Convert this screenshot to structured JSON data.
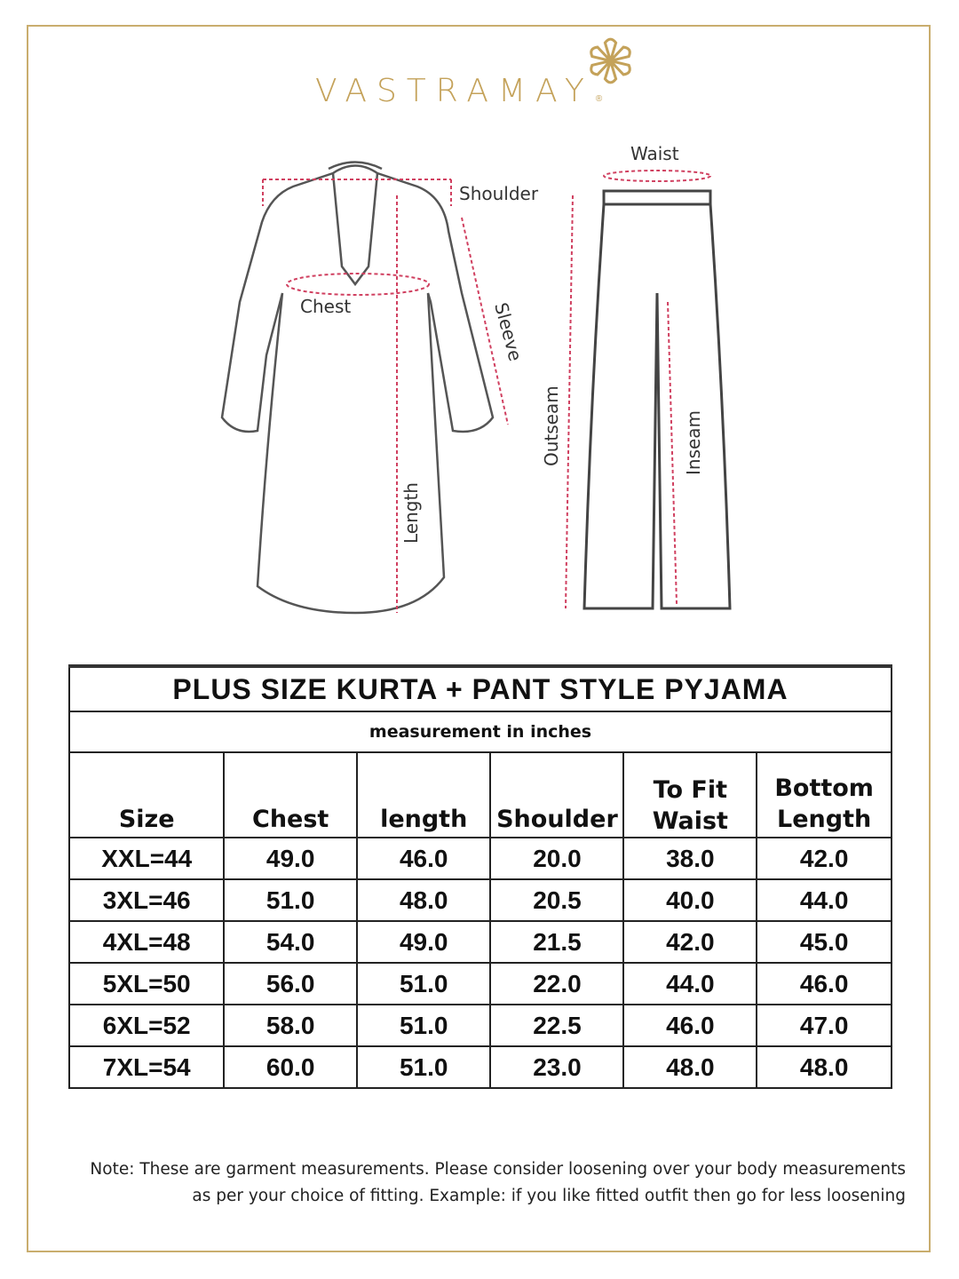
{
  "brand": {
    "name": "VASTRAMAY",
    "registered": "®",
    "color": "#c4a25a"
  },
  "diagram": {
    "kurta_labels": {
      "shoulder": "Shoulder",
      "chest": "Chest",
      "sleeve": "Sleeve",
      "length": "Length"
    },
    "pyjama_labels": {
      "waist": "Waist",
      "outseam": "Outseam",
      "inseam": "Inseam"
    }
  },
  "table": {
    "title": "PLUS SIZE KURTA + PANT STYLE PYJAMA",
    "subtitle": "measurement in inches",
    "headers": [
      "Size",
      "Chest",
      "length",
      "Shoulder",
      "To Fit Waist",
      "Bottom Length"
    ],
    "rows": [
      [
        "XXL=44",
        "49.0",
        "46.0",
        "20.0",
        "38.0",
        "42.0"
      ],
      [
        "3XL=46",
        "51.0",
        "48.0",
        "20.5",
        "40.0",
        "44.0"
      ],
      [
        "4XL=48",
        "54.0",
        "49.0",
        "21.5",
        "42.0",
        "45.0"
      ],
      [
        "5XL=50",
        "56.0",
        "51.0",
        "22.0",
        "44.0",
        "46.0"
      ],
      [
        "6XL=52",
        "58.0",
        "51.0",
        "22.5",
        "46.0",
        "47.0"
      ],
      [
        "7XL=54",
        "60.0",
        "51.0",
        "23.0",
        "48.0",
        "48.0"
      ]
    ]
  },
  "note": {
    "line1": "Note: These are garment measurements. Please consider loosening over your body measurements",
    "line2": "as per your choice of fitting. Example: if you like fitted outfit then go for less loosening"
  }
}
